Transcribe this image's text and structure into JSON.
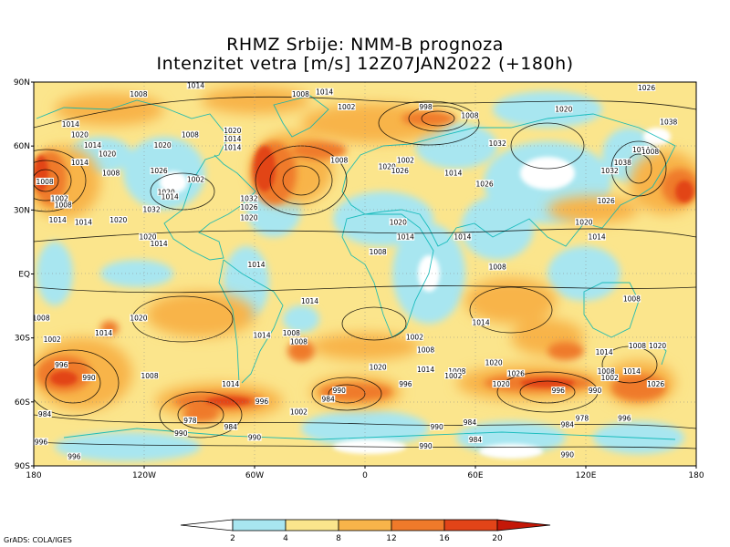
{
  "title": {
    "line1": "RHMZ Srbije: NMM-B prognoza",
    "line2": "Intenzitet vetra [m/s] 12Z07JAN2022 (+180h)"
  },
  "axes": {
    "lat_labels": [
      {
        "lat": 90,
        "text": "90N"
      },
      {
        "lat": 60,
        "text": "60N"
      },
      {
        "lat": 30,
        "text": "30N"
      },
      {
        "lat": 0,
        "text": "EQ"
      },
      {
        "lat": -30,
        "text": "30S"
      },
      {
        "lat": -60,
        "text": "60S"
      },
      {
        "lat": -90,
        "text": "90S"
      }
    ],
    "lon_labels": [
      {
        "lon": -180,
        "text": "180"
      },
      {
        "lon": -120,
        "text": "120W"
      },
      {
        "lon": -60,
        "text": "60W"
      },
      {
        "lon": 0,
        "text": "0"
      },
      {
        "lon": 60,
        "text": "60E"
      },
      {
        "lon": 120,
        "text": "120E"
      },
      {
        "lon": 180,
        "text": "180"
      }
    ]
  },
  "colorbar": {
    "colors": [
      "#ffffff",
      "#a8e6f0",
      "#fbe58c",
      "#f8b44a",
      "#ef7a2a",
      "#e24418",
      "#c41808"
    ],
    "labels": [
      "2",
      "4",
      "8",
      "12",
      "16",
      "20"
    ]
  },
  "isobars": [
    {
      "lon": -123,
      "lat": 84,
      "text": "1008"
    },
    {
      "lon": -92,
      "lat": 88,
      "text": "1014"
    },
    {
      "lon": -22,
      "lat": 85,
      "text": "1014"
    },
    {
      "lon": -35,
      "lat": 84,
      "text": "1008"
    },
    {
      "lon": -10,
      "lat": 78,
      "text": "1002"
    },
    {
      "lon": 33,
      "lat": 78,
      "text": "998"
    },
    {
      "lon": 57,
      "lat": 74,
      "text": "1008"
    },
    {
      "lon": 108,
      "lat": 77,
      "text": "1020"
    },
    {
      "lon": 153,
      "lat": 87,
      "text": "1026"
    },
    {
      "lon": 165,
      "lat": 71,
      "text": "1038"
    },
    {
      "lon": -160,
      "lat": 70,
      "text": "1014"
    },
    {
      "lon": -155,
      "lat": 65,
      "text": "1020"
    },
    {
      "lon": -148,
      "lat": 60,
      "text": "1014"
    },
    {
      "lon": -140,
      "lat": 56,
      "text": "1020"
    },
    {
      "lon": -155,
      "lat": 52,
      "text": "1014"
    },
    {
      "lon": -174,
      "lat": 43,
      "text": "1008"
    },
    {
      "lon": -138,
      "lat": 47,
      "text": "1008"
    },
    {
      "lon": -112,
      "lat": 48,
      "text": "1026"
    },
    {
      "lon": -110,
      "lat": 60,
      "text": "1020"
    },
    {
      "lon": -95,
      "lat": 65,
      "text": "1008"
    },
    {
      "lon": -72,
      "lat": 67,
      "text": "1020"
    },
    {
      "lon": -72,
      "lat": 63,
      "text": "1014"
    },
    {
      "lon": -72,
      "lat": 59,
      "text": "1014"
    },
    {
      "lon": -108,
      "lat": 38,
      "text": "1020"
    },
    {
      "lon": -106,
      "lat": 36,
      "text": "1014"
    },
    {
      "lon": -92,
      "lat": 44,
      "text": "1002"
    },
    {
      "lon": -166,
      "lat": 35,
      "text": "1002"
    },
    {
      "lon": -164,
      "lat": 32,
      "text": "1008"
    },
    {
      "lon": -167,
      "lat": 25,
      "text": "1014"
    },
    {
      "lon": -153,
      "lat": 24,
      "text": "1014"
    },
    {
      "lon": -134,
      "lat": 25,
      "text": "1020"
    },
    {
      "lon": -116,
      "lat": 30,
      "text": "1032"
    },
    {
      "lon": -118,
      "lat": 17,
      "text": "1020"
    },
    {
      "lon": -112,
      "lat": 14,
      "text": "1014"
    },
    {
      "lon": -63,
      "lat": 35,
      "text": "1032"
    },
    {
      "lon": -63,
      "lat": 31,
      "text": "1026"
    },
    {
      "lon": -63,
      "lat": 26,
      "text": "1020"
    },
    {
      "lon": -14,
      "lat": 53,
      "text": "1008"
    },
    {
      "lon": 12,
      "lat": 50,
      "text": "1020"
    },
    {
      "lon": 22,
      "lat": 53,
      "text": "1002"
    },
    {
      "lon": 19,
      "lat": 48,
      "text": "1026"
    },
    {
      "lon": 48,
      "lat": 47,
      "text": "1014"
    },
    {
      "lon": 65,
      "lat": 42,
      "text": "1026"
    },
    {
      "lon": 72,
      "lat": 61,
      "text": "1032"
    },
    {
      "lon": 140,
      "lat": 52,
      "text": "1038"
    },
    {
      "lon": 133,
      "lat": 48,
      "text": "1032"
    },
    {
      "lon": 150,
      "lat": 58,
      "text": "1014"
    },
    {
      "lon": 155,
      "lat": 57,
      "text": "1008"
    },
    {
      "lon": 131,
      "lat": 34,
      "text": "1026"
    },
    {
      "lon": 119,
      "lat": 24,
      "text": "1020"
    },
    {
      "lon": 126,
      "lat": 17,
      "text": "1014"
    },
    {
      "lon": 18,
      "lat": 24,
      "text": "1020"
    },
    {
      "lon": 22,
      "lat": 17,
      "text": "1014"
    },
    {
      "lon": 7,
      "lat": 10,
      "text": "1008"
    },
    {
      "lon": 53,
      "lat": 17,
      "text": "1014"
    },
    {
      "lon": 72,
      "lat": 3,
      "text": "1008"
    },
    {
      "lon": -59,
      "lat": 4,
      "text": "1014"
    },
    {
      "lon": -30,
      "lat": -13,
      "text": "1014"
    },
    {
      "lon": -176,
      "lat": -21,
      "text": "1008"
    },
    {
      "lon": -123,
      "lat": -21,
      "text": "1020"
    },
    {
      "lon": -170,
      "lat": -31,
      "text": "1002"
    },
    {
      "lon": -142,
      "lat": -28,
      "text": "1014"
    },
    {
      "lon": -56,
      "lat": -29,
      "text": "1014"
    },
    {
      "lon": -40,
      "lat": -28,
      "text": "1008"
    },
    {
      "lon": -36,
      "lat": -32,
      "text": "1008"
    },
    {
      "lon": 27,
      "lat": -30,
      "text": "1002"
    },
    {
      "lon": 33,
      "lat": -36,
      "text": "1008"
    },
    {
      "lon": 63,
      "lat": -23,
      "text": "1014"
    },
    {
      "lon": 145,
      "lat": -12,
      "text": "1008"
    },
    {
      "lon": -165,
      "lat": -43,
      "text": "996"
    },
    {
      "lon": -150,
      "lat": -49,
      "text": "990"
    },
    {
      "lon": -117,
      "lat": -48,
      "text": "1008"
    },
    {
      "lon": -73,
      "lat": -52,
      "text": "1014"
    },
    {
      "lon": -56,
      "lat": -60,
      "text": "996"
    },
    {
      "lon": -36,
      "lat": -65,
      "text": "1002"
    },
    {
      "lon": -174,
      "lat": -66,
      "text": "984"
    },
    {
      "lon": -95,
      "lat": -69,
      "text": "978"
    },
    {
      "lon": -73,
      "lat": -72,
      "text": "984"
    },
    {
      "lon": -100,
      "lat": -75,
      "text": "990"
    },
    {
      "lon": -60,
      "lat": -77,
      "text": "990"
    },
    {
      "lon": -176,
      "lat": -79,
      "text": "996"
    },
    {
      "lon": -158,
      "lat": -86,
      "text": "996"
    },
    {
      "lon": 7,
      "lat": -44,
      "text": "1020"
    },
    {
      "lon": -14,
      "lat": -55,
      "text": "990"
    },
    {
      "lon": -20,
      "lat": -59,
      "text": "984"
    },
    {
      "lon": 22,
      "lat": -52,
      "text": "996"
    },
    {
      "lon": 33,
      "lat": -45,
      "text": "1014"
    },
    {
      "lon": 50,
      "lat": -46,
      "text": "1008"
    },
    {
      "lon": 48,
      "lat": -48,
      "text": "1002"
    },
    {
      "lon": 70,
      "lat": -42,
      "text": "1020"
    },
    {
      "lon": 82,
      "lat": -47,
      "text": "1026"
    },
    {
      "lon": 74,
      "lat": -52,
      "text": "1020"
    },
    {
      "lon": 105,
      "lat": -55,
      "text": "996"
    },
    {
      "lon": 125,
      "lat": -55,
      "text": "990"
    },
    {
      "lon": 130,
      "lat": -37,
      "text": "1014"
    },
    {
      "lon": 131,
      "lat": -46,
      "text": "1008"
    },
    {
      "lon": 133,
      "lat": -49,
      "text": "1002"
    },
    {
      "lon": 145,
      "lat": -46,
      "text": "1014"
    },
    {
      "lon": 148,
      "lat": -34,
      "text": "1008"
    },
    {
      "lon": 159,
      "lat": -34,
      "text": "1020"
    },
    {
      "lon": 158,
      "lat": -52,
      "text": "1026"
    },
    {
      "lon": 118,
      "lat": -68,
      "text": "978"
    },
    {
      "lon": 110,
      "lat": -71,
      "text": "984"
    },
    {
      "lon": 141,
      "lat": -68,
      "text": "996"
    },
    {
      "lon": 57,
      "lat": -70,
      "text": "984"
    },
    {
      "lon": 39,
      "lat": -72,
      "text": "990"
    },
    {
      "lon": 60,
      "lat": -78,
      "text": "984"
    },
    {
      "lon": 33,
      "lat": -81,
      "text": "990"
    },
    {
      "lon": 110,
      "lat": -85,
      "text": "990"
    }
  ],
  "footer": "GrADS: COLA/IGES"
}
